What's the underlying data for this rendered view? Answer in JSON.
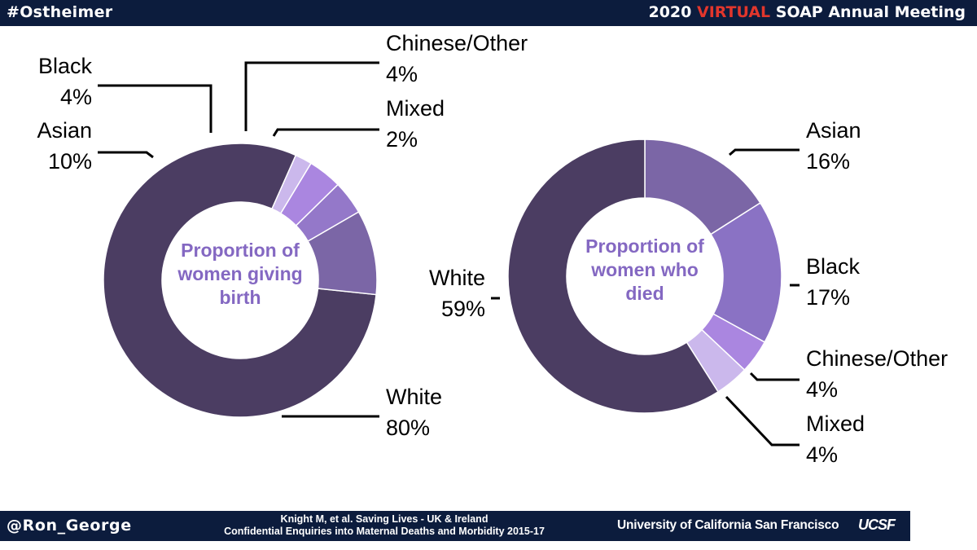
{
  "header": {
    "hashtag": "#Ostheimer",
    "meeting_year": "2020",
    "meeting_virtual": "VIRTUAL",
    "meeting_rest": "SOAP Annual Meeting"
  },
  "footer": {
    "handle": "@Ron_George",
    "citation_line1": "Knight M, et al. Saving Lives - UK & Ireland",
    "citation_line2": "Confidential Enquiries into Maternal Deaths and Morbidity 2015-17",
    "university": "University of California San Francisco",
    "logo": "UCSF"
  },
  "chart_data": [
    {
      "type": "pie",
      "donut": true,
      "center_label": [
        "Proportion of",
        "women giving",
        "birth"
      ],
      "categories": [
        "White",
        "Asian",
        "Black",
        "Chinese/Other",
        "Mixed"
      ],
      "values": [
        80,
        10,
        4,
        4,
        2
      ],
      "value_labels": [
        "80%",
        "10%",
        "4%",
        "4%",
        "2%"
      ],
      "colors": [
        "#4b3d62",
        "#7b66a6",
        "#9478c9",
        "#aa86e0",
        "#cbb8ec"
      ]
    },
    {
      "type": "pie",
      "donut": true,
      "center_label": [
        "Proportion of",
        "women who",
        "died"
      ],
      "categories": [
        "Asian",
        "Black",
        "Chinese/Other",
        "Mixed",
        "White"
      ],
      "values": [
        16,
        17,
        4,
        4,
        59
      ],
      "value_labels": [
        "16%",
        "17%",
        "4%",
        "4%",
        "59%"
      ],
      "colors": [
        "#7b66a6",
        "#8a72c4",
        "#aa86e0",
        "#cbb8ec",
        "#4b3d62"
      ]
    }
  ]
}
